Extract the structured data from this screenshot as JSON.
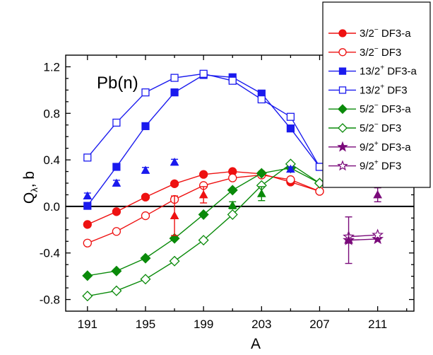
{
  "chart_data": {
    "type": "scatter",
    "xlabel": "A",
    "ylabel": "Q",
    "ylabel_sub": "λ",
    "ylabel_unit": ", b",
    "annotation": "Pb(n)",
    "xlim": [
      189.5,
      213.5
    ],
    "ylim": [
      -0.9,
      1.3
    ],
    "x_ticks": [
      191,
      195,
      199,
      203,
      207,
      211
    ],
    "x_tick_labels": [
      "191",
      "195",
      "199",
      "203",
      "207",
      "211"
    ],
    "y_ticks": [
      -0.8,
      -0.4,
      0.0,
      0.4,
      0.8,
      1.2
    ],
    "y_tick_labels": [
      "-0.8",
      "-0.4",
      "0.0",
      "0.4",
      "0.8",
      "1.2"
    ],
    "zero_line": true,
    "grid": false,
    "legend_position": "top-right",
    "series": [
      {
        "name": "3/2",
        "sup": "−",
        "method": "DF3-a",
        "color": "#ee1111",
        "marker": "circle",
        "filled": true,
        "x": [
          191,
          193,
          195,
          197,
          199,
          201,
          203,
          205,
          207
        ],
        "y": [
          -0.155,
          -0.045,
          0.08,
          0.195,
          0.275,
          0.3,
          0.28,
          0.21,
          0.13
        ]
      },
      {
        "name": "3/2",
        "sup": "−",
        "method": "DF3",
        "color": "#ee1111",
        "marker": "circle",
        "filled": false,
        "x": [
          191,
          193,
          195,
          197,
          199,
          201,
          203,
          205,
          207
        ],
        "y": [
          -0.315,
          -0.215,
          -0.08,
          0.06,
          0.18,
          0.245,
          0.27,
          0.23,
          0.13
        ]
      },
      {
        "name": "13/2",
        "sup": "+",
        "method": "DF3-a",
        "color": "#1a1aee",
        "marker": "square",
        "filled": true,
        "x": [
          191,
          193,
          195,
          197,
          199,
          201,
          203,
          205,
          207
        ],
        "y": [
          0.005,
          0.34,
          0.69,
          0.98,
          1.13,
          1.11,
          0.97,
          0.67,
          0.34
        ]
      },
      {
        "name": "13/2",
        "sup": "+",
        "method": "DF3",
        "color": "#1a1aee",
        "marker": "square",
        "filled": false,
        "x": [
          191,
          193,
          195,
          197,
          199,
          201,
          203,
          205,
          207
        ],
        "y": [
          0.42,
          0.72,
          0.98,
          1.105,
          1.14,
          1.08,
          0.92,
          0.77,
          0.34
        ]
      },
      {
        "name": "5/2",
        "sup": "−",
        "method": "DF3-a",
        "color": "#0a8a0a",
        "marker": "diamond",
        "filled": true,
        "x": [
          191,
          193,
          195,
          197,
          199,
          201,
          203,
          205,
          207
        ],
        "y": [
          -0.595,
          -0.555,
          -0.445,
          -0.275,
          -0.07,
          0.14,
          0.285,
          0.33,
          0.2
        ]
      },
      {
        "name": "5/2",
        "sup": "−",
        "method": "DF3",
        "color": "#0a8a0a",
        "marker": "diamond",
        "filled": false,
        "x": [
          191,
          193,
          195,
          197,
          199,
          201,
          203,
          205,
          207
        ],
        "y": [
          -0.77,
          -0.725,
          -0.625,
          -0.47,
          -0.29,
          -0.07,
          0.18,
          0.365,
          0.2
        ]
      },
      {
        "name": "9/2",
        "sup": "+",
        "method": "DF3-a",
        "color": "#7a0a7a",
        "marker": "star",
        "filled": true,
        "x": [
          209,
          211
        ],
        "y": [
          -0.29,
          -0.28
        ]
      },
      {
        "name": "9/2",
        "sup": "+",
        "method": "DF3",
        "color": "#7a0a7a",
        "marker": "star",
        "filled": false,
        "x": [
          209,
          211
        ],
        "y": [
          -0.26,
          -0.245
        ]
      }
    ],
    "experimental": [
      {
        "group": "13/2+",
        "color": "#1a1aee",
        "x": [
          191,
          193,
          195,
          197,
          205
        ],
        "y": [
          0.09,
          0.2,
          0.31,
          0.38,
          0.32
        ],
        "err": [
          0.025,
          0.025,
          0.025,
          0.025,
          0.02
        ]
      },
      {
        "group": "3/2-",
        "color": "#ee1111",
        "x": [
          197,
          199
        ],
        "y": [
          -0.08,
          0.1
        ],
        "err": [
          0.17,
          0.07
        ]
      },
      {
        "group": "5/2-",
        "color": "#0a8a0a",
        "x": [
          201,
          203
        ],
        "y": [
          0.01,
          0.11
        ],
        "err": [
          0.03,
          0.06
        ]
      },
      {
        "group": "9/2+",
        "color": "#7a0a7a",
        "x": [
          209,
          211
        ],
        "y": [
          -0.29,
          0.1
        ],
        "err": [
          0.2,
          0.06
        ]
      }
    ]
  }
}
